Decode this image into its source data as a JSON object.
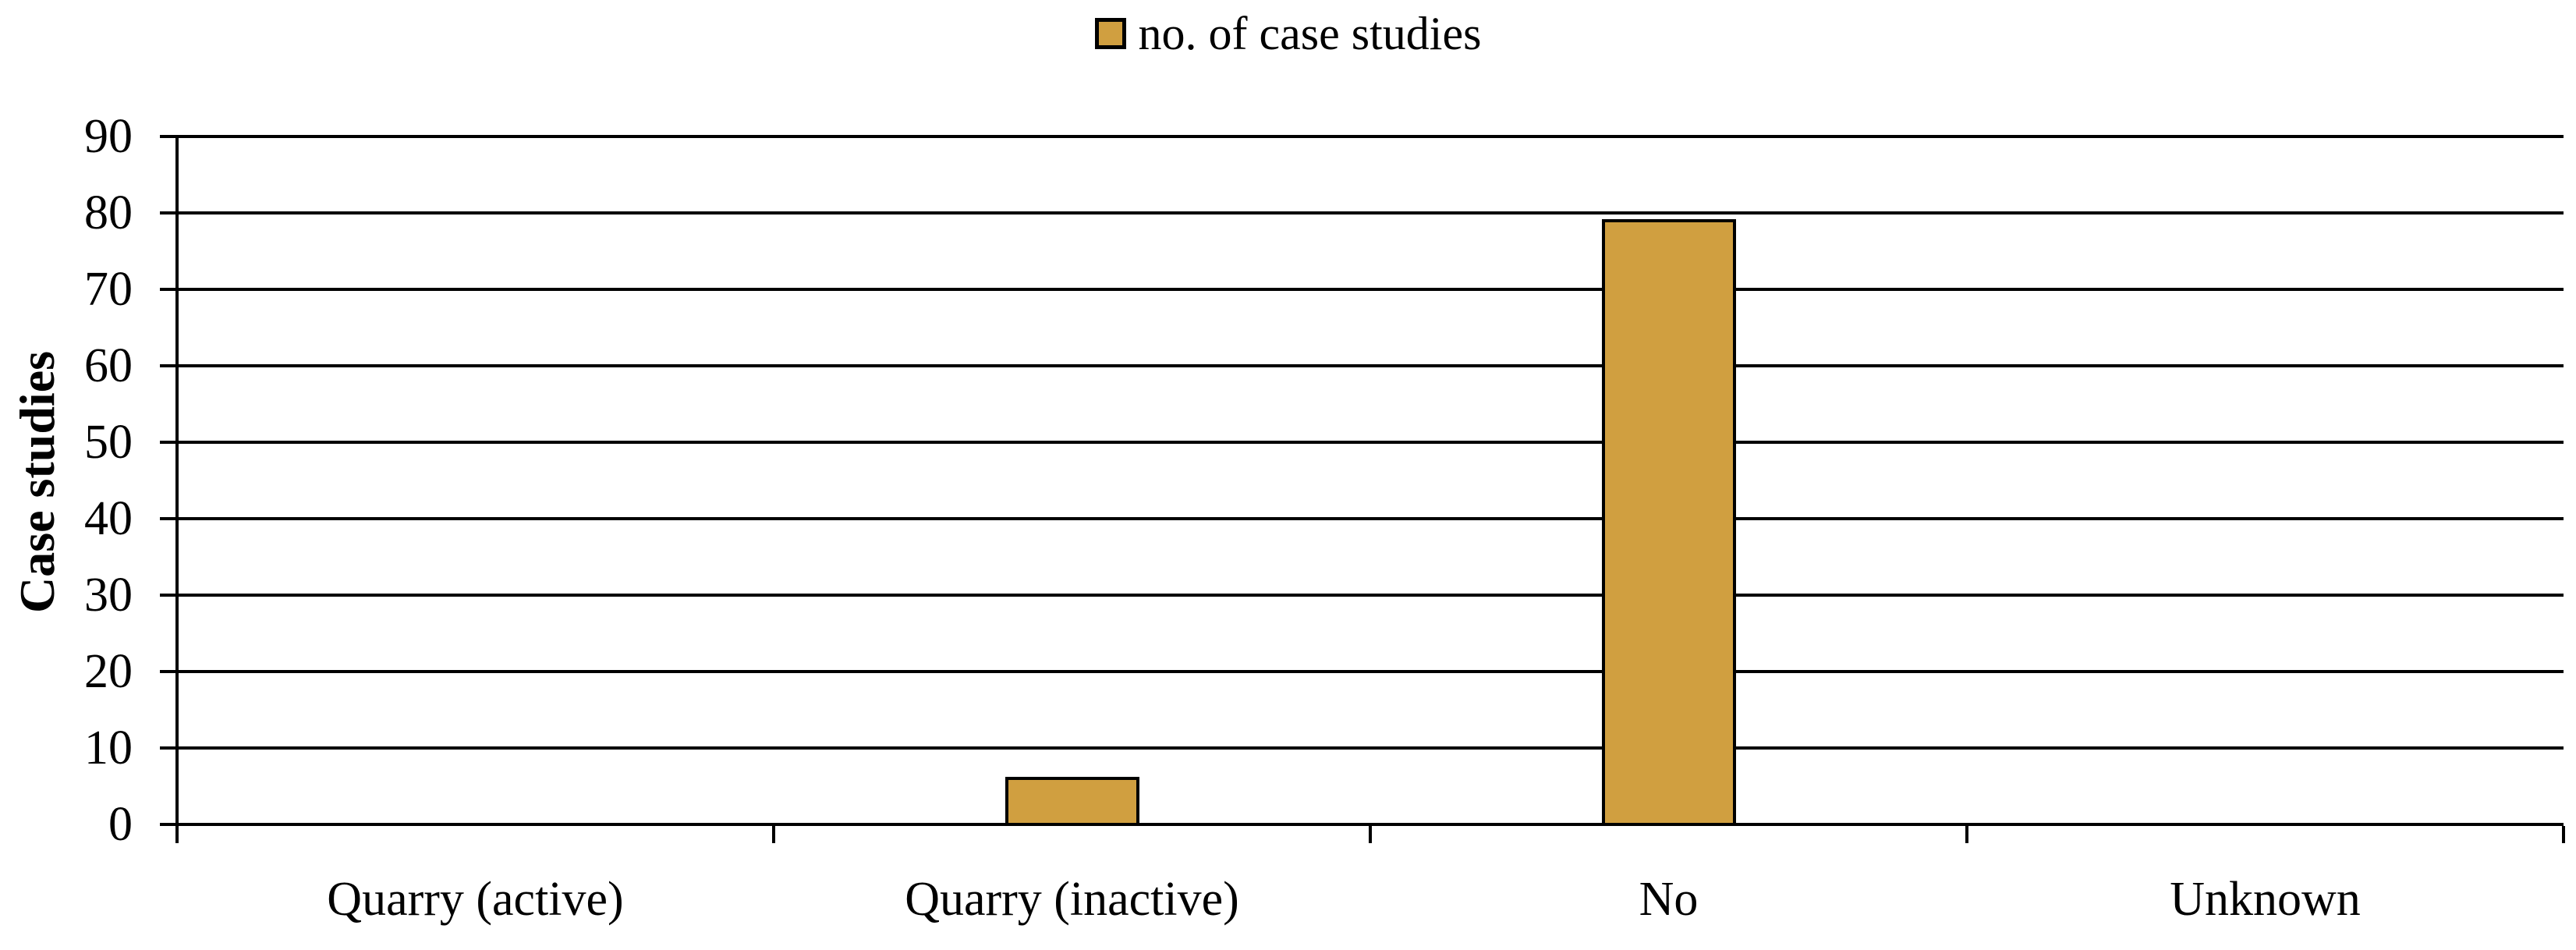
{
  "legend": {
    "label": "no. of case studies"
  },
  "colors": {
    "bar_fill": "#D09F40",
    "bar_border": "#000000",
    "axis": "#000000",
    "text": "#000000",
    "background": "#ffffff"
  },
  "chart_data": {
    "type": "bar",
    "title": "",
    "categories": [
      "Quarry (active)",
      "Quarry (inactive)",
      "No",
      "Unknown"
    ],
    "series": [
      {
        "name": "no. of case studies",
        "values": [
          0,
          6,
          79,
          0
        ]
      }
    ],
    "xlabel": "",
    "ylabel": "Case studies",
    "ylim": [
      0,
      90
    ],
    "yticks": [
      0,
      10,
      20,
      30,
      40,
      50,
      60,
      70,
      80,
      90
    ],
    "grid": true,
    "gridlines": "horizontal-black",
    "legend_position": "top-center",
    "bar_color": "#D09F40",
    "bar_border_color": "#000000"
  }
}
